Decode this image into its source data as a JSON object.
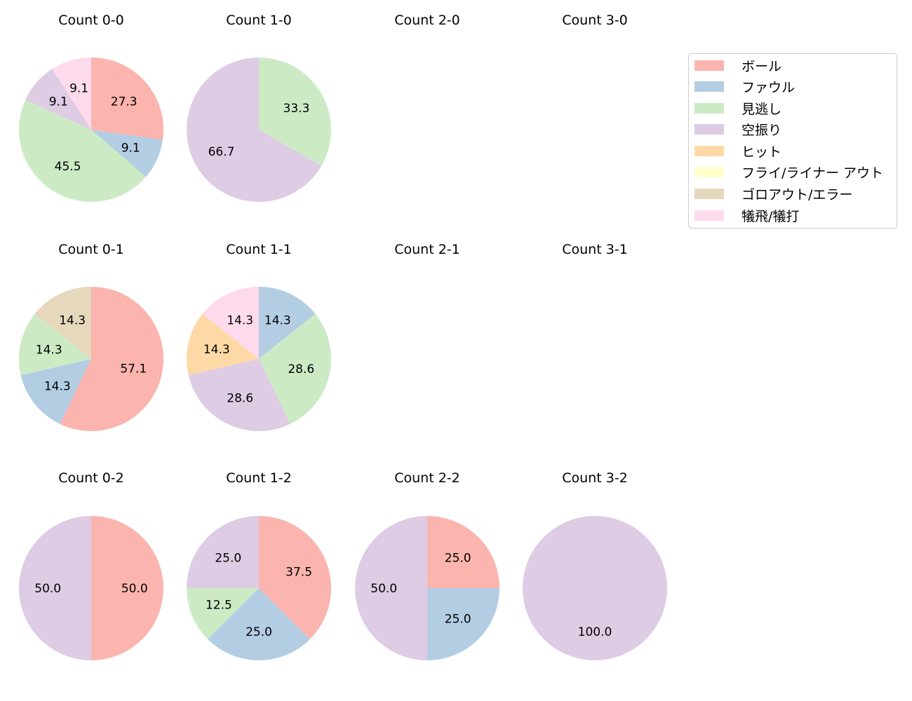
{
  "chart_data": {
    "type": "pie",
    "legend": {
      "position": "upper right",
      "entries": [
        {
          "label": "ボール",
          "color": "#fbb4ae"
        },
        {
          "label": "ファウル",
          "color": "#b3cde3"
        },
        {
          "label": "見逃し",
          "color": "#ccebc5"
        },
        {
          "label": "空振り",
          "color": "#decbe4"
        },
        {
          "label": "ヒット",
          "color": "#fed9a6"
        },
        {
          "label": "フライ/ライナー アウト",
          "color": "#ffffcc"
        },
        {
          "label": "ゴロアウト/エラー",
          "color": "#e5d8bd"
        },
        {
          "label": "犠飛/犠打",
          "color": "#fddaec"
        }
      ]
    },
    "charts": [
      {
        "title": "Count 0-0",
        "row": 0,
        "col": 0,
        "slices": [
          {
            "category": "ボール",
            "value": 27.3
          },
          {
            "category": "ファウル",
            "value": 9.1
          },
          {
            "category": "見逃し",
            "value": 45.5
          },
          {
            "category": "空振り",
            "value": 9.1
          },
          {
            "category": "犠飛/犠打",
            "value": 9.1
          }
        ]
      },
      {
        "title": "Count 1-0",
        "row": 0,
        "col": 1,
        "slices": [
          {
            "category": "見逃し",
            "value": 33.3
          },
          {
            "category": "空振り",
            "value": 66.7
          }
        ]
      },
      {
        "title": "Count 2-0",
        "row": 0,
        "col": 2,
        "slices": []
      },
      {
        "title": "Count 3-0",
        "row": 0,
        "col": 3,
        "slices": []
      },
      {
        "title": "Count 0-1",
        "row": 1,
        "col": 0,
        "slices": [
          {
            "category": "ボール",
            "value": 57.1
          },
          {
            "category": "ファウル",
            "value": 14.3
          },
          {
            "category": "見逃し",
            "value": 14.3
          },
          {
            "category": "ゴロアウト/エラー",
            "value": 14.3
          }
        ]
      },
      {
        "title": "Count 1-1",
        "row": 1,
        "col": 1,
        "slices": [
          {
            "category": "ファウル",
            "value": 14.3
          },
          {
            "category": "見逃し",
            "value": 28.6
          },
          {
            "category": "空振り",
            "value": 28.6
          },
          {
            "category": "ヒット",
            "value": 14.3
          },
          {
            "category": "犠飛/犠打",
            "value": 14.3
          }
        ]
      },
      {
        "title": "Count 2-1",
        "row": 1,
        "col": 2,
        "slices": []
      },
      {
        "title": "Count 3-1",
        "row": 1,
        "col": 3,
        "slices": []
      },
      {
        "title": "Count 0-2",
        "row": 2,
        "col": 0,
        "slices": [
          {
            "category": "ボール",
            "value": 50.0
          },
          {
            "category": "空振り",
            "value": 50.0
          }
        ]
      },
      {
        "title": "Count 1-2",
        "row": 2,
        "col": 1,
        "slices": [
          {
            "category": "ボール",
            "value": 37.5
          },
          {
            "category": "ファウル",
            "value": 25.0
          },
          {
            "category": "見逃し",
            "value": 12.5
          },
          {
            "category": "空振り",
            "value": 25.0
          }
        ]
      },
      {
        "title": "Count 2-2",
        "row": 2,
        "col": 2,
        "slices": [
          {
            "category": "ボール",
            "value": 25.0
          },
          {
            "category": "ファウル",
            "value": 25.0
          },
          {
            "category": "空振り",
            "value": 50.0
          }
        ]
      },
      {
        "title": "Count 3-2",
        "row": 2,
        "col": 3,
        "slices": [
          {
            "category": "空振り",
            "value": 100.0
          }
        ]
      }
    ]
  }
}
